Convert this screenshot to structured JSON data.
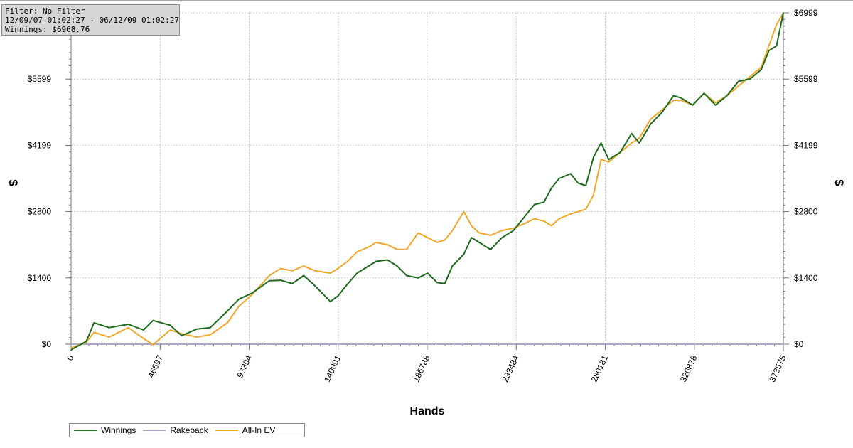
{
  "info": {
    "filter": "Filter: No Filter",
    "date_range": "12/09/07 01:02:27 - 06/12/09 01:02:27",
    "winnings": "Winnings: $6968.76"
  },
  "chart_data": {
    "type": "line",
    "xlabel": "Hands",
    "ylabel": "$",
    "xlim": [
      0,
      373575
    ],
    "ylim": [
      -150,
      6999
    ],
    "x_ticks": [
      "0",
      "46697",
      "93394",
      "140091",
      "186788",
      "233484",
      "280181",
      "326878",
      "373575"
    ],
    "x_tick_values": [
      0,
      46697,
      93394,
      140091,
      186788,
      233484,
      280181,
      326878,
      373575
    ],
    "y_ticks": [
      "$0",
      "$1400",
      "$2800",
      "$4199",
      "$5599",
      "$6999"
    ],
    "y_tick_values": [
      0,
      1400,
      2800,
      4199,
      5599,
      6999
    ],
    "grid": true,
    "legend_position": "bottom-left",
    "series": [
      {
        "name": "Winnings",
        "color": "#1e6b1e",
        "x": [
          0,
          8000,
          12000,
          20000,
          30000,
          38000,
          43000,
          52000,
          58000,
          66000,
          73000,
          82000,
          88000,
          95000,
          104000,
          110000,
          116000,
          122000,
          128000,
          136000,
          140000,
          145000,
          150000,
          156000,
          160000,
          166000,
          171000,
          176000,
          182000,
          187000,
          192000,
          196000,
          200000,
          206000,
          210000,
          214000,
          220000,
          226000,
          232000,
          238000,
          243000,
          248000,
          252000,
          256000,
          262000,
          266000,
          270000,
          274000,
          278000,
          282000,
          288000,
          294000,
          298000,
          304000,
          310000,
          316000,
          320000,
          326000,
          332000,
          338000,
          344000,
          350000,
          356000,
          362000,
          366000,
          370000,
          373575
        ],
        "y": [
          -120,
          60,
          450,
          350,
          420,
          300,
          500,
          400,
          180,
          320,
          350,
          700,
          950,
          1080,
          1340,
          1350,
          1280,
          1450,
          1230,
          900,
          1020,
          1270,
          1500,
          1650,
          1750,
          1780,
          1650,
          1450,
          1400,
          1500,
          1300,
          1280,
          1650,
          1900,
          2250,
          2150,
          2000,
          2250,
          2400,
          2700,
          2950,
          3000,
          3300,
          3500,
          3600,
          3400,
          3350,
          3950,
          4250,
          3900,
          4050,
          4450,
          4250,
          4650,
          4900,
          5250,
          5200,
          5050,
          5300,
          5050,
          5250,
          5550,
          5600,
          5800,
          6200,
          6300,
          6999
        ]
      },
      {
        "name": "Rakeback",
        "color": "#a8a8c8",
        "x": [
          0,
          373575
        ],
        "y": [
          0,
          0
        ]
      },
      {
        "name": "All-In EV",
        "color": "#f0a72a",
        "x": [
          0,
          8000,
          12000,
          20000,
          30000,
          38000,
          43000,
          52000,
          58000,
          66000,
          73000,
          82000,
          88000,
          95000,
          104000,
          110000,
          116000,
          122000,
          128000,
          136000,
          140000,
          145000,
          150000,
          156000,
          160000,
          166000,
          171000,
          176000,
          182000,
          187000,
          192000,
          196000,
          200000,
          206000,
          210000,
          214000,
          220000,
          226000,
          232000,
          238000,
          243000,
          248000,
          252000,
          256000,
          262000,
          266000,
          270000,
          274000,
          278000,
          282000,
          288000,
          294000,
          298000,
          304000,
          310000,
          316000,
          320000,
          326000,
          332000,
          338000,
          344000,
          350000,
          356000,
          362000,
          366000,
          370000,
          373575
        ],
        "y": [
          -80,
          40,
          250,
          150,
          350,
          120,
          -10,
          300,
          220,
          150,
          200,
          450,
          800,
          1050,
          1450,
          1600,
          1550,
          1650,
          1550,
          1500,
          1600,
          1750,
          1950,
          2050,
          2150,
          2100,
          2000,
          2000,
          2350,
          2250,
          2150,
          2200,
          2400,
          2800,
          2500,
          2350,
          2300,
          2400,
          2450,
          2550,
          2650,
          2600,
          2500,
          2650,
          2750,
          2800,
          2850,
          3150,
          3900,
          3850,
          4050,
          4250,
          4350,
          4750,
          4950,
          5150,
          5150,
          5050,
          5300,
          5100,
          5250,
          5450,
          5650,
          5850,
          6300,
          6750,
          6999
        ]
      }
    ]
  }
}
